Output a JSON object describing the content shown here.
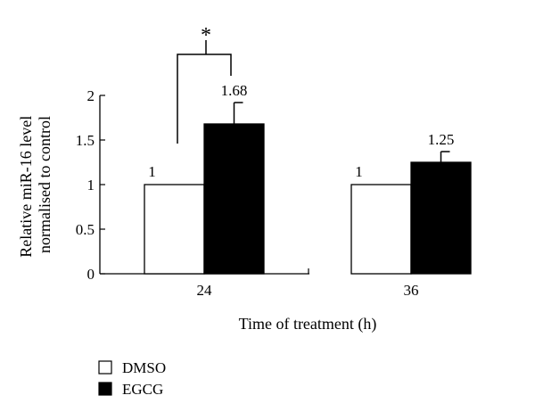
{
  "chart_data": {
    "type": "bar",
    "title": "",
    "xlabel": "Time of treatment (h)",
    "ylabel_lines": [
      "Relative miR-16 level",
      "normalised to control"
    ],
    "categories": [
      "24",
      "36"
    ],
    "series": [
      {
        "name": "DMSO",
        "values": [
          1,
          1
        ],
        "errors": [
          0,
          0
        ],
        "labels": [
          "1",
          "1"
        ],
        "fill": "#ffffff"
      },
      {
        "name": "EGCG",
        "values": [
          1.68,
          1.25
        ],
        "errors": [
          0.24,
          0.12
        ],
        "labels": [
          "1.68",
          "1.25"
        ],
        "fill": "#000000"
      }
    ],
    "ylim": [
      0,
      2
    ],
    "yticks": [
      0,
      0.5,
      1,
      1.5,
      2
    ],
    "ytick_labels": [
      "0",
      "0.5",
      "1",
      "1.5",
      "2"
    ],
    "significance": {
      "category": "24",
      "symbol": "*"
    },
    "grid": false,
    "legend_position": "bottom-left"
  }
}
